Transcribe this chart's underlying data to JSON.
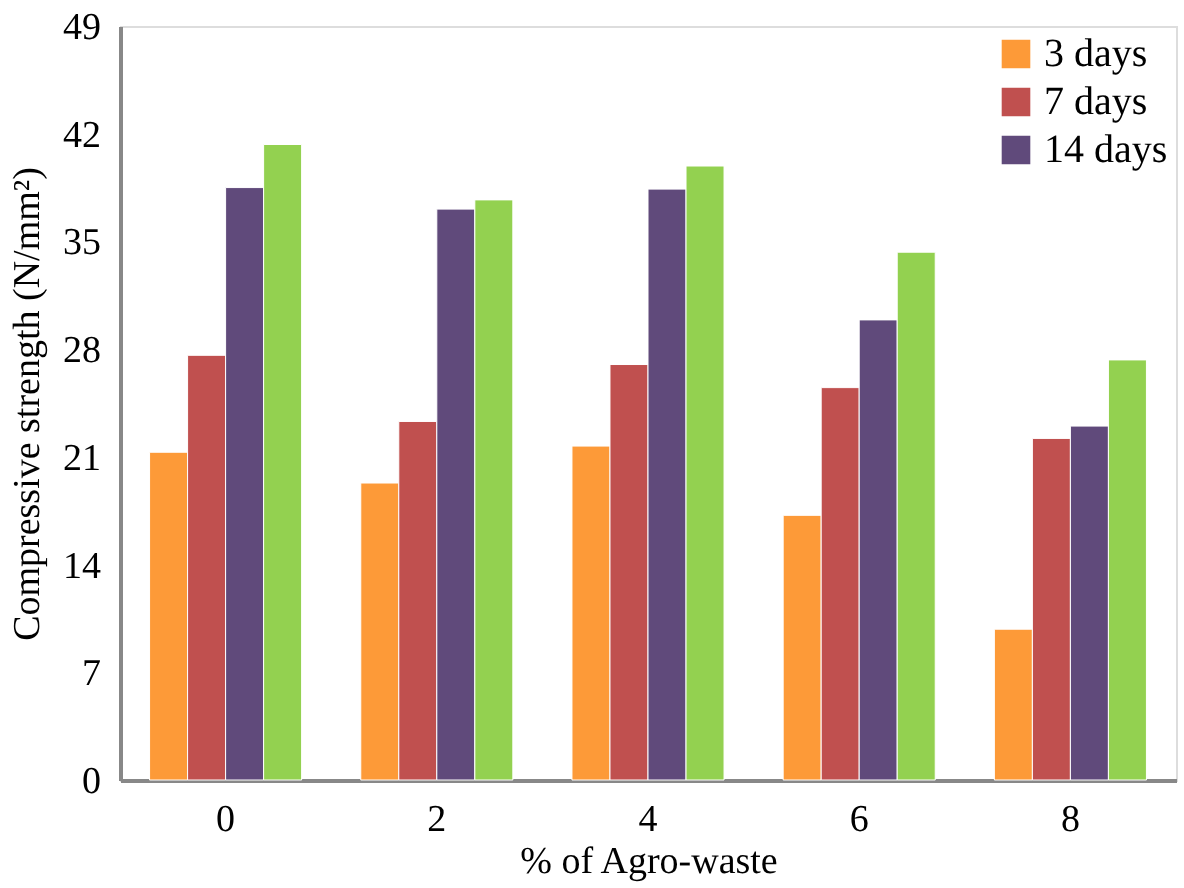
{
  "chart_data": {
    "type": "bar",
    "xlabel": "% of Agro-waste",
    "ylabel": "Compressive strength (N/mm²)",
    "categories": [
      "0",
      "2",
      "4",
      "6",
      "8"
    ],
    "series": [
      {
        "name": "3 days",
        "color": "#fd9a38",
        "values": [
          21.3,
          19.3,
          21.7,
          17.2,
          9.8
        ]
      },
      {
        "name": "7 days",
        "color": "#c0504f",
        "values": [
          27.6,
          23.3,
          27.0,
          25.5,
          22.2
        ]
      },
      {
        "name": "14 days",
        "color": "#604a7b",
        "values": [
          38.5,
          37.1,
          38.4,
          29.9,
          23.0
        ]
      },
      {
        "color": "#93d150",
        "values": [
          41.3,
          37.7,
          39.9,
          34.3,
          27.3
        ]
      }
    ],
    "ylim": [
      0,
      49
    ],
    "yticks": [
      0,
      7,
      14,
      21,
      28,
      35,
      42,
      49
    ],
    "grid": false,
    "legend": "top right"
  }
}
